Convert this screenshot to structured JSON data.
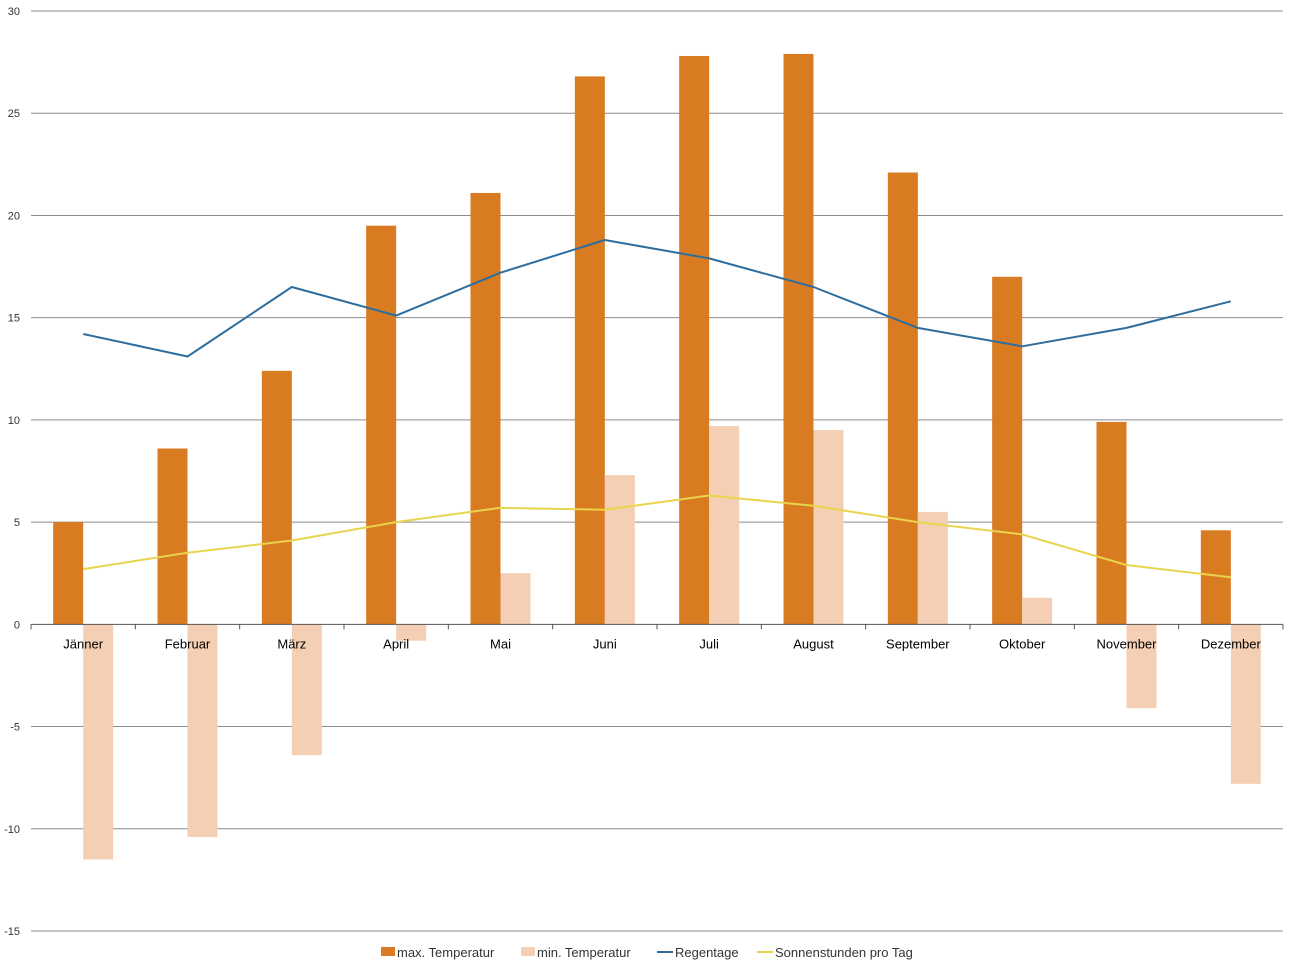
{
  "chart_data": {
    "type": "bar",
    "categories": [
      "Jänner",
      "Februar",
      "März",
      "April",
      "Mai",
      "Juni",
      "Juli",
      "August",
      "September",
      "Oktober",
      "November",
      "Dezember"
    ],
    "ylim": [
      -15,
      30
    ],
    "yticks": [
      30,
      25,
      20,
      15,
      10,
      5,
      0,
      -5,
      -10,
      -15
    ],
    "grid": true,
    "legend_position": "bottom",
    "series": [
      {
        "name": "max. Temperatur",
        "type": "bar",
        "color": "#d97b20",
        "values": [
          5.0,
          8.6,
          12.4,
          19.5,
          21.1,
          26.8,
          27.8,
          27.9,
          22.1,
          17.0,
          9.9,
          4.6
        ]
      },
      {
        "name": "min. Temperatur",
        "type": "bar",
        "color": "#f4cfb3",
        "values": [
          -11.5,
          -10.4,
          -6.4,
          -0.8,
          2.5,
          7.3,
          9.7,
          9.5,
          5.5,
          1.3,
          -4.1,
          -7.8
        ]
      },
      {
        "name": "Regentage",
        "type": "line",
        "color": "#2e6e9e",
        "values": [
          14.2,
          13.1,
          16.5,
          15.1,
          17.2,
          18.8,
          17.9,
          16.5,
          14.5,
          13.6,
          14.5,
          15.8
        ]
      },
      {
        "name": "Sonnenstunden pro Tag",
        "type": "line",
        "color": "#e8d44d",
        "values": [
          2.7,
          3.5,
          4.1,
          5.0,
          5.7,
          5.6,
          6.3,
          5.8,
          5.0,
          4.4,
          2.9,
          2.3
        ]
      }
    ]
  }
}
